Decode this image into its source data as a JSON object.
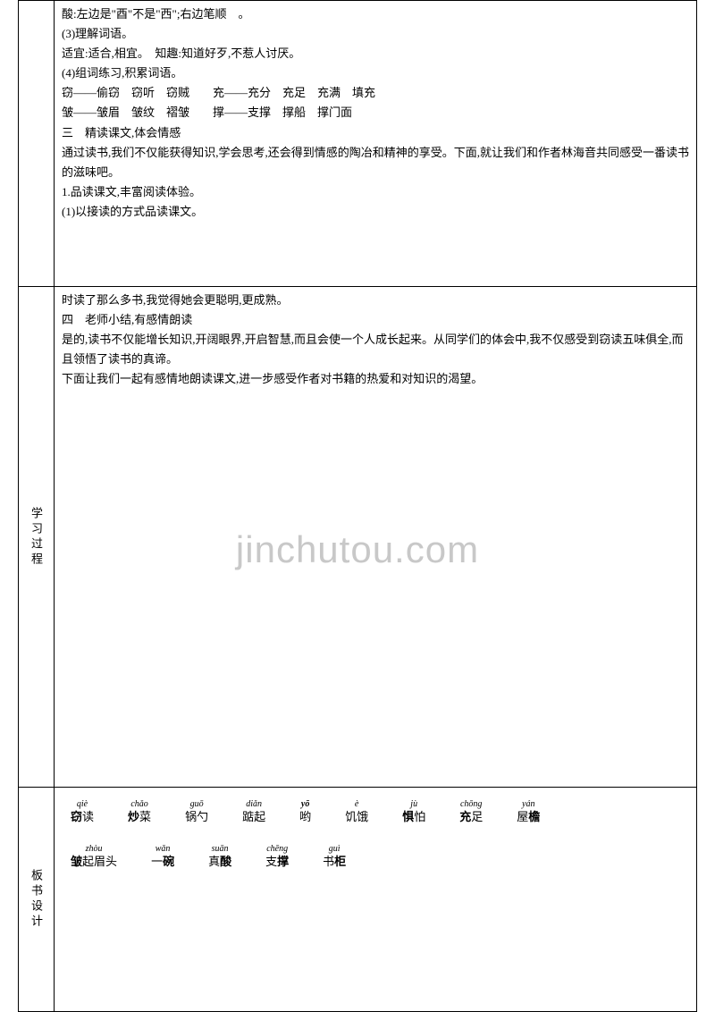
{
  "section1": {
    "lines": [
      "酸:左边是\"酉\"不是\"西\";右边笔顺　。",
      "(3)理解词语。",
      "适宜:适合,相宜。　知趣:知道好歹,不惹人讨厌。",
      "(4)组词练习,积累词语。",
      "窃——偷窃　窃听　窃贼　　充——充分　充足　充满　填充",
      "皱——皱眉　皱纹　褶皱　　撑——支撑　撑船　撑门面",
      "三　精读课文,体会情感",
      "通过读书,我们不仅能获得知识,学会思考,还会得到情感的陶冶和精神的享受。下面,就让我们和作者林海音共同感受一番读书的滋味吧。",
      "1.品读课文,丰富阅读体验。",
      "(1)以接读的方式品读课文。"
    ]
  },
  "section2": {
    "label": "学习过程",
    "lines": [
      "时读了那么多书,我觉得她会更聪明,更成熟。",
      "四　老师小结,有感情朗读",
      "是的,读书不仅能增长知识,开阔眼界,开启智慧,而且会使一个人成长起来。从同学们的体会中,我不仅感受到窃读五味俱全,而且领悟了读书的真谛。",
      "下面让我们一起有感情地朗读课文,进一步感受作者对书籍的热爱和对知识的渴望。"
    ]
  },
  "section3": {
    "label": "板书设计",
    "vocab_row1": [
      {
        "pinyin": "qiè",
        "chars": [
          {
            "t": "窃",
            "b": true
          },
          {
            "t": "读"
          }
        ]
      },
      {
        "pinyin": "chǎo",
        "chars": [
          {
            "t": "炒",
            "b": true
          },
          {
            "t": "菜"
          }
        ]
      },
      {
        "pinyin": "guō",
        "chars": [
          {
            "t": "锅"
          },
          {
            "t": "勺"
          }
        ]
      },
      {
        "pinyin": "diǎn",
        "chars": [
          {
            "t": "踮"
          },
          {
            "t": "起"
          }
        ]
      },
      {
        "pinyin": "yō",
        "chars": [
          {
            "t": "哟"
          }
        ],
        "pinyin_bold": true
      },
      {
        "pinyin": "è",
        "chars": [
          {
            "t": "饥"
          },
          {
            "t": "饿"
          }
        ]
      },
      {
        "pinyin": "jù",
        "chars": [
          {
            "t": "惧",
            "b": true
          },
          {
            "t": "怕"
          }
        ]
      },
      {
        "pinyin": "chōng",
        "chars": [
          {
            "t": "充",
            "b": true
          },
          {
            "t": "足"
          }
        ]
      },
      {
        "pinyin": "yán",
        "chars": [
          {
            "t": "屋"
          },
          {
            "t": "檐",
            "b": true
          }
        ]
      }
    ],
    "vocab_row2": [
      {
        "pinyin": "zhòu",
        "chars": [
          {
            "t": "皱",
            "b": true
          },
          {
            "t": "起"
          },
          {
            "t": "眉"
          },
          {
            "t": "头"
          }
        ]
      },
      {
        "pinyin": "wǎn",
        "chars": [
          {
            "t": "一"
          },
          {
            "t": "碗",
            "b": true
          }
        ]
      },
      {
        "pinyin": "suān",
        "chars": [
          {
            "t": "真"
          },
          {
            "t": "酸",
            "b": true
          }
        ]
      },
      {
        "pinyin": "chēng",
        "chars": [
          {
            "t": "支"
          },
          {
            "t": "撑",
            "b": true
          }
        ]
      },
      {
        "pinyin": "guì",
        "chars": [
          {
            "t": "书"
          },
          {
            "t": "柜",
            "b": true
          }
        ]
      }
    ]
  }
}
